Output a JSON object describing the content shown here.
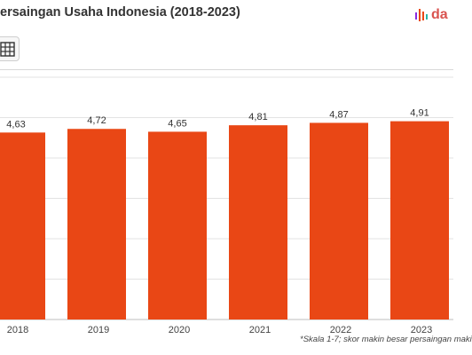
{
  "colors": {
    "bar": "#e94715",
    "grid": "#e3e3e3",
    "axis": "#bdbdbd"
  },
  "icons": {
    "logo": "databoks-bars-icon",
    "table_view": "table-grid-icon"
  },
  "logo_text": "da",
  "chart_data": {
    "type": "bar",
    "title": "ersaingan Usaha Indonesia (2018-2023)",
    "categories": [
      "2018",
      "2019",
      "2020",
      "2021",
      "2022",
      "2023"
    ],
    "values": [
      4.63,
      4.72,
      4.65,
      4.81,
      4.87,
      4.91
    ],
    "value_labels": [
      "4,63",
      "4,72",
      "4,65",
      "4,81",
      "4,87",
      "4,91"
    ],
    "ylim": [
      0,
      6
    ],
    "grid": true,
    "note": "*Skala 1-7; skor makin besar persaingan maki"
  }
}
